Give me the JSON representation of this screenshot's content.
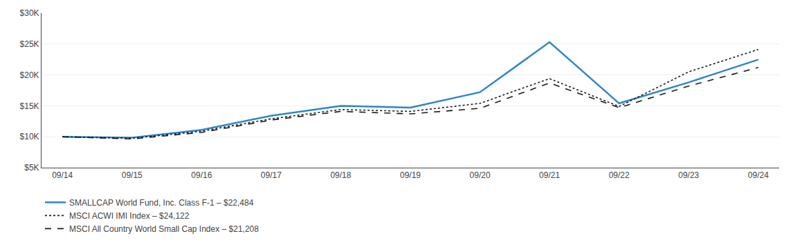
{
  "chart_data": {
    "type": "line",
    "categories": [
      "09/14",
      "09/15",
      "09/16",
      "09/17",
      "09/18",
      "09/19",
      "09/20",
      "09/21",
      "09/22",
      "09/23",
      "09/24"
    ],
    "series": [
      {
        "name": "SMALLCAP World Fund, Inc. Class F-1 – $22,484",
        "color": "#2e86c8",
        "line_style": "solid",
        "values": [
          10000,
          9850,
          11100,
          13400,
          15000,
          14700,
          17200,
          25300,
          15400,
          18800,
          22484
        ]
      },
      {
        "name": "MSCI ACWI IMI Index – $24,122",
        "color": "#1a1a1a",
        "line_style": "dotted",
        "values": [
          10000,
          9750,
          10900,
          12900,
          14400,
          14100,
          15400,
          19400,
          14900,
          20500,
          24122
        ]
      },
      {
        "name": "MSCI All Country World Small Cap Index – $21,208",
        "color": "#1a1a1a",
        "line_style": "dashed",
        "values": [
          10000,
          9650,
          10700,
          12700,
          14100,
          13700,
          14600,
          18700,
          14700,
          18200,
          21208
        ]
      }
    ],
    "ylim": [
      5000,
      30000
    ],
    "yticks": [
      {
        "value": 5000,
        "label": "$5K"
      },
      {
        "value": 10000,
        "label": "$10K"
      },
      {
        "value": 15000,
        "label": "$15K"
      },
      {
        "value": 20000,
        "label": "$20K"
      },
      {
        "value": 25000,
        "label": "$25K"
      },
      {
        "value": 30000,
        "label": "$30K"
      }
    ],
    "grid": true,
    "legend": "bottom"
  }
}
